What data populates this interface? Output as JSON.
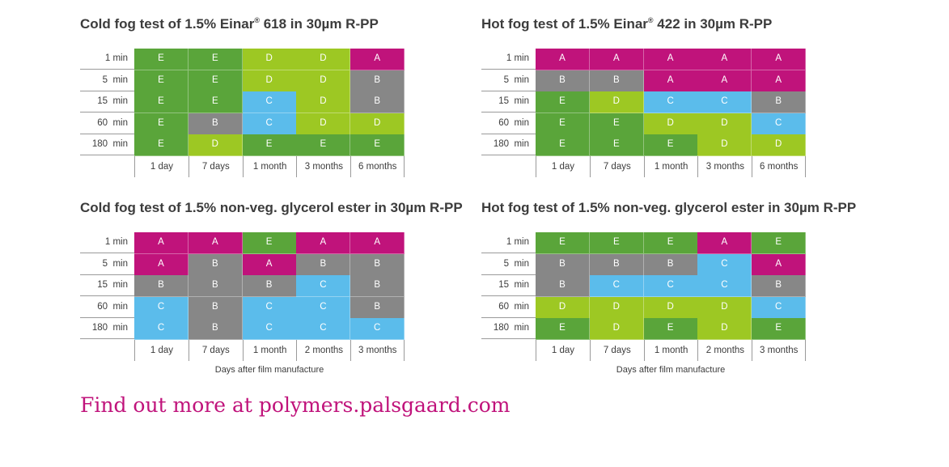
{
  "palette": {
    "A": "#c0137b",
    "B": "#878787",
    "C": "#5bbceb",
    "D": "#9dc823",
    "E": "#5aa53a"
  },
  "chart_data": [
    {
      "type": "table",
      "title": "Cold fog test of 1.5% Einar",
      "title_superscript": "®",
      "title_suffix": " 618 in 30µm R-PP",
      "row_labels": [
        "1 min",
        "5  min",
        "15  min",
        "60  min",
        "180  min"
      ],
      "col_labels": [
        "1 day",
        "7 days",
        "1 month",
        "3 months",
        "6 months"
      ],
      "cells": [
        [
          "E",
          "E",
          "D",
          "D",
          "A"
        ],
        [
          "E",
          "E",
          "D",
          "D",
          "B"
        ],
        [
          "E",
          "E",
          "C",
          "D",
          "B"
        ],
        [
          "E",
          "B",
          "C",
          "D",
          "D"
        ],
        [
          "E",
          "D",
          "E",
          "E",
          "E"
        ]
      ],
      "xlabel": ""
    },
    {
      "type": "table",
      "title": "Hot fog test of 1.5% Einar",
      "title_superscript": "®",
      "title_suffix": " 422 in 30µm R-PP",
      "row_labels": [
        "1 min",
        "5  min",
        "15  min",
        "60  min",
        "180  min"
      ],
      "col_labels": [
        "1 day",
        "7 days",
        "1 month",
        "3 months",
        "6 months"
      ],
      "cells": [
        [
          "A",
          "A",
          "A",
          "A",
          "A"
        ],
        [
          "B",
          "B",
          "A",
          "A",
          "A"
        ],
        [
          "E",
          "D",
          "C",
          "C",
          "B"
        ],
        [
          "E",
          "E",
          "D",
          "D",
          "C"
        ],
        [
          "E",
          "E",
          "E",
          "D",
          "D"
        ]
      ],
      "xlabel": ""
    },
    {
      "type": "table",
      "title": "Cold fog test of 1.5% non-veg. glycerol ester in 30µm R-PP",
      "title_superscript": "",
      "title_suffix": "",
      "row_labels": [
        "1 min",
        "5  min",
        "15  min",
        "60  min",
        "180  min"
      ],
      "col_labels": [
        "1 day",
        "7 days",
        "1 month",
        "2 months",
        "3 months"
      ],
      "cells": [
        [
          "A",
          "A",
          "E",
          "A",
          "A"
        ],
        [
          "A",
          "B",
          "A",
          "B",
          "B"
        ],
        [
          "B",
          "B",
          "B",
          "C",
          "B"
        ],
        [
          "C",
          "B",
          "C",
          "C",
          "B"
        ],
        [
          "C",
          "B",
          "C",
          "C",
          "C"
        ]
      ],
      "xlabel": "Days after film manufacture"
    },
    {
      "type": "table",
      "title": "Hot fog test of 1.5% non-veg. glycerol ester in 30µm R-PP",
      "title_superscript": "",
      "title_suffix": "",
      "row_labels": [
        "1 min",
        "5  min",
        "15  min",
        "60  min",
        "180  min"
      ],
      "col_labels": [
        "1 day",
        "7 days",
        "1 month",
        "2 months",
        "3 months"
      ],
      "cells": [
        [
          "E",
          "E",
          "E",
          "A",
          "E"
        ],
        [
          "B",
          "B",
          "B",
          "C",
          "A"
        ],
        [
          "B",
          "C",
          "C",
          "C",
          "B"
        ],
        [
          "D",
          "D",
          "D",
          "D",
          "C"
        ],
        [
          "E",
          "D",
          "E",
          "D",
          "E"
        ]
      ],
      "xlabel": "Days after film manufacture"
    }
  ],
  "footer": {
    "text": "Find out more at polymers.palsgaard.com"
  }
}
